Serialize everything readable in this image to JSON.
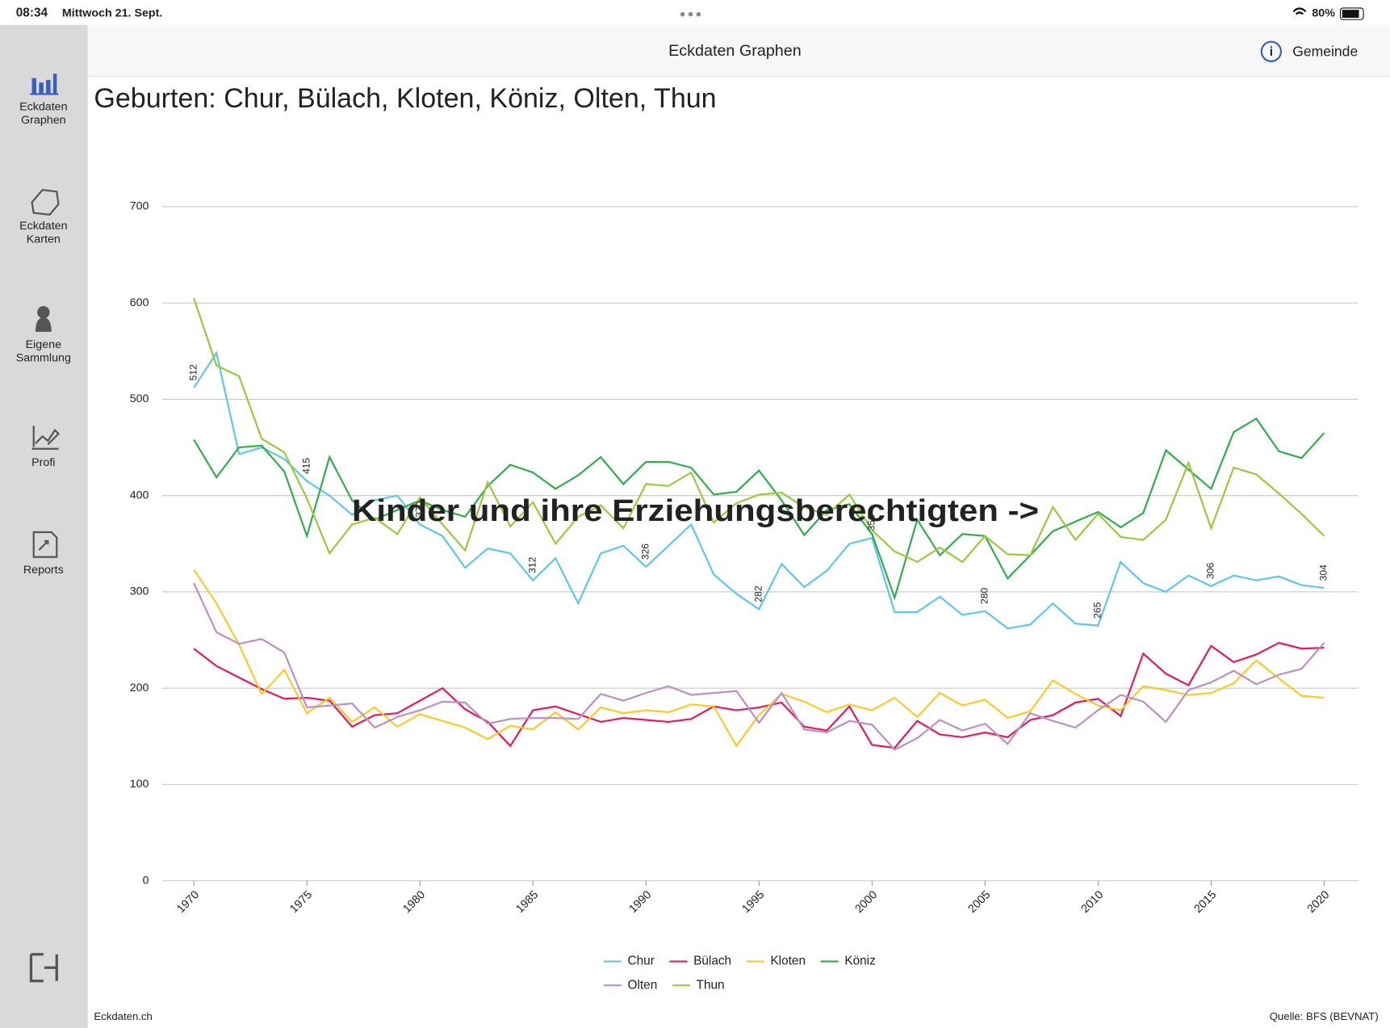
{
  "status_bar": {
    "time": "08:34",
    "date": "Mittwoch 21. Sept.",
    "battery": "80%"
  },
  "header": {
    "title": "Eckdaten Graphen",
    "action": "Gemeinde"
  },
  "sidebar": [
    {
      "label": [
        "Eckdaten",
        "Graphen"
      ]
    },
    {
      "label": [
        "Eckdaten",
        "Karten"
      ]
    },
    {
      "label": [
        "Eigene",
        "Sammlung"
      ]
    },
    {
      "label": [
        "Profi"
      ]
    },
    {
      "label": [
        "Reports"
      ]
    }
  ],
  "overlay": "Kinder und ihre Erziehungsberechtigten ->",
  "footer": {
    "left": "Eckdaten.ch",
    "right": "Quelle: BFS (BEVNAT)"
  },
  "chart_data": {
    "type": "line",
    "title": "Geburten: Chur, Bülach, Kloten, Köniz, Olten, Thun",
    "x": [
      1970,
      1971,
      1972,
      1973,
      1974,
      1975,
      1976,
      1977,
      1978,
      1979,
      1980,
      1981,
      1982,
      1983,
      1984,
      1985,
      1986,
      1987,
      1988,
      1989,
      1990,
      1991,
      1992,
      1993,
      1994,
      1995,
      1996,
      1997,
      1998,
      1999,
      2000,
      2001,
      2002,
      2003,
      2004,
      2005,
      2006,
      2007,
      2008,
      2009,
      2010,
      2011,
      2012,
      2013,
      2014,
      2015,
      2016,
      2017,
      2018,
      2019,
      2020
    ],
    "xlim": [
      1968.6,
      2021.5
    ],
    "xticks": [
      1970,
      1975,
      1980,
      1985,
      1990,
      1995,
      2000,
      2005,
      2010,
      2015,
      2020
    ],
    "ylim": [
      0,
      700
    ],
    "yticks": [
      0,
      100,
      200,
      300,
      400,
      500,
      600,
      700
    ],
    "grid": true,
    "series": [
      {
        "name": "Chur",
        "color": "#5bc8ea",
        "data_labels": 5,
        "values": [
          512,
          548,
          443,
          450,
          438,
          415,
          400,
          380,
          395,
          400,
          370,
          358,
          325,
          345,
          340,
          312,
          335,
          288,
          340,
          348,
          326,
          348,
          370,
          318,
          298,
          282,
          329,
          305,
          322,
          350,
          356,
          279,
          279,
          295,
          276,
          280,
          262,
          266,
          288,
          267,
          265,
          331,
          309,
          300,
          317,
          306,
          317,
          312,
          316,
          307,
          304
        ]
      },
      {
        "name": "Bülach",
        "color": "#e8175d",
        "values": [
          241,
          223,
          211,
          199,
          189,
          190,
          187,
          160,
          172,
          174,
          187,
          200,
          178,
          165,
          140,
          177,
          181,
          173,
          165,
          169,
          167,
          165,
          168,
          181,
          177,
          180,
          185,
          160,
          156,
          181,
          141,
          138,
          166,
          152,
          149,
          154,
          149,
          167,
          172,
          185,
          189,
          171,
          236,
          215,
          203,
          244,
          227,
          235,
          247,
          241,
          242
        ]
      },
      {
        "name": "Kloten",
        "color": "#fdc926",
        "values": [
          323,
          288,
          245,
          194,
          219,
          174,
          190,
          165,
          180,
          160,
          173,
          166,
          159,
          147,
          161,
          157,
          175,
          157,
          180,
          174,
          177,
          175,
          183,
          181,
          140,
          172,
          194,
          186,
          175,
          183,
          177,
          190,
          170,
          195,
          182,
          188,
          169,
          176,
          208,
          194,
          182,
          177,
          202,
          198,
          193,
          195,
          205,
          229,
          210,
          192,
          190
        ]
      },
      {
        "name": "Köniz",
        "color": "#2fae4d",
        "values": [
          458,
          419,
          450,
          452,
          425,
          358,
          440,
          395,
          375,
          385,
          395,
          385,
          378,
          410,
          432,
          424,
          407,
          421,
          440,
          412,
          435,
          435,
          429,
          401,
          404,
          426,
          395,
          359,
          385,
          391,
          360,
          294,
          375,
          338,
          360,
          358,
          314,
          338,
          363,
          373,
          383,
          367,
          382,
          447,
          427,
          407,
          466,
          480,
          446,
          439,
          465
        ]
      },
      {
        "name": "Olten",
        "color": "#bb8fc6",
        "values": [
          309,
          258,
          246,
          251,
          237,
          180,
          182,
          184,
          159,
          170,
          177,
          186,
          185,
          163,
          168,
          169,
          169,
          168,
          194,
          187,
          195,
          202,
          193,
          195,
          197,
          164,
          195,
          157,
          154,
          166,
          162,
          136,
          148,
          167,
          156,
          163,
          142,
          174,
          166,
          159,
          177,
          193,
          186,
          165,
          198,
          206,
          218,
          204,
          214,
          220,
          247
        ]
      },
      {
        "name": "Thun",
        "color": "#9bc93a",
        "values": [
          605,
          535,
          524,
          459,
          445,
          397,
          340,
          370,
          377,
          360,
          398,
          370,
          343,
          414,
          368,
          393,
          350,
          378,
          390,
          366,
          412,
          410,
          424,
          372,
          392,
          401,
          403,
          388,
          380,
          401,
          364,
          342,
          331,
          346,
          331,
          358,
          339,
          338,
          388,
          354,
          381,
          357,
          354,
          375,
          434,
          366,
          429,
          422,
          402,
          381,
          358
        ]
      }
    ]
  }
}
